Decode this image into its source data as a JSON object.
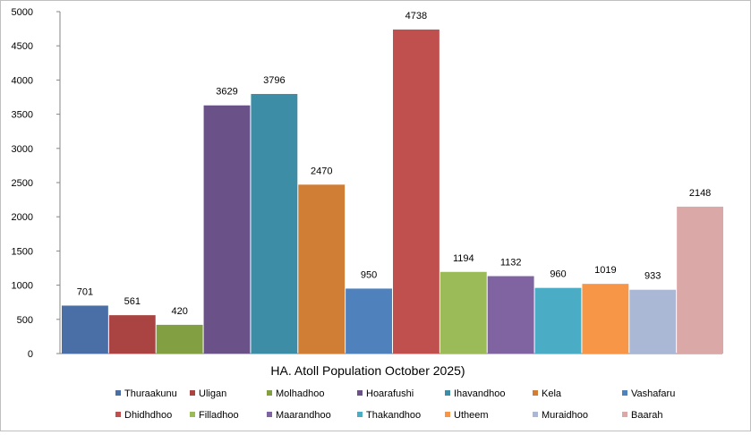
{
  "chart_data": {
    "type": "bar",
    "title": "HA. Atoll Population October 2025)",
    "xlabel": "",
    "ylabel": "",
    "ylim": [
      0,
      5000
    ],
    "yticks": [
      0,
      500,
      1000,
      1500,
      2000,
      2500,
      3000,
      3500,
      4000,
      4500,
      5000
    ],
    "grid": false,
    "legend_position": "bottom",
    "categories": [
      "Thuraakunu",
      "Uligan",
      "Molhadhoo",
      "Hoarafushi",
      "Ihavandhoo",
      "Kela",
      "Vashafaru",
      "Dhidhdhoo",
      "Filladhoo",
      "Maarandhoo",
      "Thakandhoo",
      "Utheem",
      "Muraidhoo",
      "Baarah"
    ],
    "values": [
      701,
      561,
      420,
      3629,
      3796,
      2470,
      950,
      4738,
      1194,
      1132,
      960,
      1019,
      933,
      2148
    ],
    "colors": [
      "#4a6ea6",
      "#a94442",
      "#82a042",
      "#6a5188",
      "#3c8da5",
      "#d07d36",
      "#4f81bd",
      "#c0504d",
      "#9bbb59",
      "#8064a2",
      "#4bacc6",
      "#f79646",
      "#aab8d6",
      "#dba8a8"
    ]
  }
}
